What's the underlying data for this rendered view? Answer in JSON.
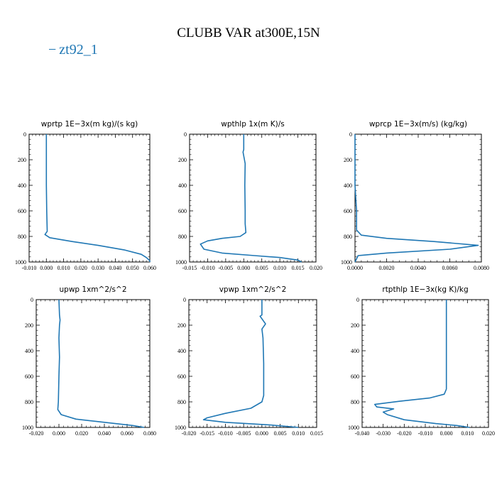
{
  "title": "CLUBB VAR at300E,15N",
  "legend": [
    {
      "name": "zt92_1",
      "color": "#1f77b4"
    }
  ],
  "chart_data": [
    {
      "type": "line",
      "title": "wprtp  1E−3x(m kg)/(s kg)",
      "xlim": [
        -0.01,
        0.06
      ],
      "ylim": [
        1000,
        0
      ],
      "xticks": [
        "-0.010",
        "0.000",
        "0.010",
        "0.020",
        "0.030",
        "0.040",
        "0.050",
        "0.060"
      ],
      "yticks": [
        "0",
        "200",
        "400",
        "600",
        "800",
        "1000"
      ],
      "series": [
        {
          "name": "zt92_1",
          "color": "#1f77b4",
          "points": [
            [
              0.0,
              0
            ],
            [
              0.0,
              200
            ],
            [
              0.0,
              400
            ],
            [
              0.0002,
              600
            ],
            [
              0.0005,
              760
            ],
            [
              -0.0008,
              785
            ],
            [
              0.002,
              810
            ],
            [
              0.015,
              840
            ],
            [
              0.03,
              870
            ],
            [
              0.045,
              905
            ],
            [
              0.055,
              940
            ],
            [
              0.058,
              965
            ],
            [
              0.06,
              990
            ],
            [
              0.06,
              1000
            ]
          ]
        }
      ]
    },
    {
      "type": "line",
      "title": "wpthlp  1x(m K)/s",
      "xlim": [
        -0.015,
        0.02
      ],
      "ylim": [
        1000,
        0
      ],
      "xticks": [
        "-0.015",
        "-0.010",
        "-0.005",
        "0.000",
        "0.005",
        "0.010",
        "0.015",
        "0.020"
      ],
      "yticks": [
        "0",
        "200",
        "400",
        "600",
        "800",
        "1000"
      ],
      "series": [
        {
          "name": "zt92_1",
          "color": "#1f77b4",
          "points": [
            [
              0.0,
              0
            ],
            [
              0.0,
              120
            ],
            [
              -0.0002,
              140
            ],
            [
              0.0,
              170
            ],
            [
              0.0004,
              230
            ],
            [
              0.0003,
              400
            ],
            [
              0.0004,
              600
            ],
            [
              0.0004,
              700
            ],
            [
              0.0006,
              770
            ],
            [
              -0.001,
              800
            ],
            [
              -0.006,
              815
            ],
            [
              -0.01,
              835
            ],
            [
              -0.012,
              860
            ],
            [
              -0.011,
              900
            ],
            [
              -0.006,
              930
            ],
            [
              0.003,
              950
            ],
            [
              0.01,
              965
            ],
            [
              0.015,
              985
            ],
            [
              0.016,
              1000
            ]
          ]
        }
      ]
    },
    {
      "type": "line",
      "title": "wprcp  1E−3x(m/s) (kg/kg)",
      "xlim": [
        0.0,
        0.008
      ],
      "ylim": [
        1000,
        0
      ],
      "xticks": [
        "0.0000",
        "0.0020",
        "0.0040",
        "0.0060",
        "0.0080"
      ],
      "yticks": [
        "0",
        "200",
        "400",
        "600",
        "800",
        "1000"
      ],
      "series": [
        {
          "name": "zt92_1",
          "color": "#1f77b4",
          "points": [
            [
              0.0,
              0
            ],
            [
              0.0,
              400
            ],
            [
              5e-05,
              500
            ],
            [
              0.0001,
              600
            ],
            [
              0.0001,
              700
            ],
            [
              0.0001,
              750
            ],
            [
              0.0004,
              790
            ],
            [
              0.002,
              815
            ],
            [
              0.005,
              840
            ],
            [
              0.0078,
              870
            ],
            [
              0.006,
              900
            ],
            [
              0.002,
              930
            ],
            [
              0.0002,
              950
            ],
            [
              0.0,
              1000
            ]
          ]
        }
      ]
    },
    {
      "type": "line",
      "title": "upwp  1xm^2/s^2",
      "xlim": [
        -0.02,
        0.08
      ],
      "ylim": [
        1000,
        0
      ],
      "xticks": [
        "-0.020",
        "0.000",
        "0.020",
        "0.040",
        "0.060",
        "0.080"
      ],
      "yticks": [
        "0",
        "200",
        "400",
        "600",
        "800",
        "1000"
      ],
      "series": [
        {
          "name": "zt92_1",
          "color": "#1f77b4",
          "points": [
            [
              0.0,
              0
            ],
            [
              0.0005,
              120
            ],
            [
              0.001,
              160
            ],
            [
              0.0005,
              200
            ],
            [
              0.0,
              300
            ],
            [
              0.0005,
              450
            ],
            [
              0.0,
              600
            ],
            [
              -0.0005,
              800
            ],
            [
              -0.001,
              860
            ],
            [
              0.002,
              900
            ],
            [
              0.015,
              935
            ],
            [
              0.04,
              960
            ],
            [
              0.065,
              985
            ],
            [
              0.075,
              1000
            ]
          ]
        }
      ]
    },
    {
      "type": "line",
      "title": "vpwp  1xm^2/s^2",
      "xlim": [
        -0.02,
        0.015
      ],
      "ylim": [
        1000,
        0
      ],
      "xticks": [
        "-0.020",
        "-0.015",
        "-0.010",
        "-0.005",
        "0.000",
        "0.005",
        "0.010",
        "0.015"
      ],
      "yticks": [
        "0",
        "200",
        "400",
        "600",
        "800",
        "1000"
      ],
      "series": [
        {
          "name": "zt92_1",
          "color": "#1f77b4",
          "points": [
            [
              0.0,
              0
            ],
            [
              0.0,
              120
            ],
            [
              -0.0005,
              130
            ],
            [
              0.0,
              150
            ],
            [
              0.001,
              190
            ],
            [
              0.0,
              230
            ],
            [
              0.0003,
              300
            ],
            [
              0.0005,
              500
            ],
            [
              0.0005,
              750
            ],
            [
              0.0,
              800
            ],
            [
              -0.003,
              850
            ],
            [
              -0.01,
              890
            ],
            [
              -0.015,
              925
            ],
            [
              -0.016,
              940
            ],
            [
              -0.01,
              960
            ],
            [
              0.002,
              980
            ],
            [
              0.01,
              1000
            ]
          ]
        }
      ]
    },
    {
      "type": "line",
      "title": "rtpthlp  1E−3x(kg K)/kg",
      "xlim": [
        -0.04,
        0.02
      ],
      "ylim": [
        1000,
        0
      ],
      "xticks": [
        "-0.040",
        "-0.030",
        "-0.020",
        "-0.010",
        "0.000",
        "0.010",
        "0.020"
      ],
      "yticks": [
        "0",
        "200",
        "400",
        "600",
        "800",
        "1000"
      ],
      "series": [
        {
          "name": "zt92_1",
          "color": "#1f77b4",
          "points": [
            [
              0.0,
              0
            ],
            [
              0.0,
              300
            ],
            [
              0.0,
              600
            ],
            [
              0.0,
              700
            ],
            [
              -0.001,
              740
            ],
            [
              -0.008,
              770
            ],
            [
              -0.022,
              795
            ],
            [
              -0.034,
              820
            ],
            [
              -0.033,
              840
            ],
            [
              -0.025,
              855
            ],
            [
              -0.03,
              880
            ],
            [
              -0.028,
              900
            ],
            [
              -0.02,
              940
            ],
            [
              -0.005,
              970
            ],
            [
              0.005,
              985
            ],
            [
              0.011,
              1000
            ]
          ]
        }
      ]
    }
  ]
}
